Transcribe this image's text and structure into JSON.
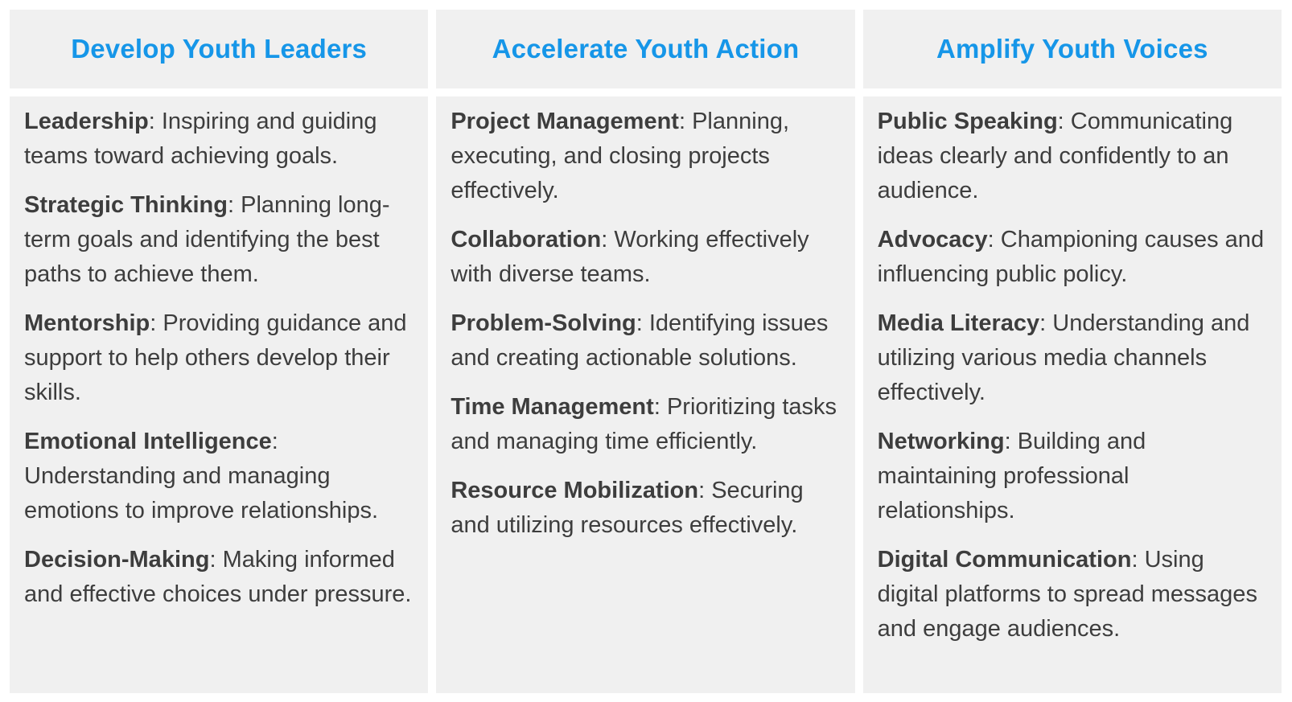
{
  "page": {
    "background_color": "#ffffff",
    "cell_background_color": "#f0f0f0",
    "header_text_color": "#1696e8",
    "body_text_color": "#3d3d3d"
  },
  "table": {
    "separator": ": ",
    "columns": [
      {
        "header": "Develop Youth Leaders",
        "items": [
          {
            "term": "Leadership",
            "description": "Inspiring and guiding teams toward achieving goals."
          },
          {
            "term": "Strategic Thinking",
            "description": "Planning long-term goals and identifying the best paths to achieve them."
          },
          {
            "term": "Mentorship",
            "description": "Providing guidance and support to help others develop their skills."
          },
          {
            "term": "Emotional Intelligence",
            "description": "Understanding and managing emotions to improve relationships."
          },
          {
            "term": "Decision-Making",
            "description": "Making informed and effective choices under pressure."
          }
        ]
      },
      {
        "header": "Accelerate Youth Action",
        "items": [
          {
            "term": "Project Management",
            "description": "Planning, executing, and closing projects effectively."
          },
          {
            "term": "Collaboration",
            "description": "Working effectively with diverse teams."
          },
          {
            "term": "Problem-Solving",
            "description": "Identifying issues and creating actionable solutions."
          },
          {
            "term": "Time Management",
            "description": "Prioritizing tasks and managing time efficiently."
          },
          {
            "term": "Resource Mobilization",
            "description": "Securing and utilizing resources effectively."
          }
        ]
      },
      {
        "header": "Amplify Youth Voices",
        "items": [
          {
            "term": "Public Speaking",
            "description": "Communicating ideas clearly and confidently to an audience."
          },
          {
            "term": "Advocacy",
            "description": "Championing causes and influencing public policy."
          },
          {
            "term": "Media Literacy",
            "description": "Understanding and utilizing various media channels effectively."
          },
          {
            "term": "Networking",
            "description": "Building and maintaining professional relationships."
          },
          {
            "term": "Digital Communication",
            "description": "Using digital platforms to spread messages and engage audiences."
          }
        ]
      }
    ]
  }
}
